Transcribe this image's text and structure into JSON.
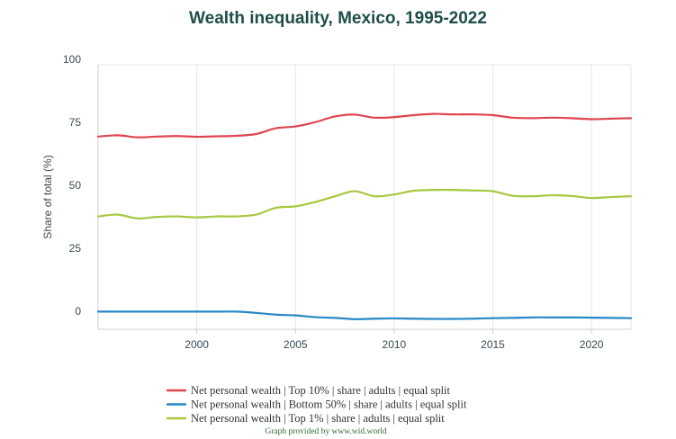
{
  "chart_data": {
    "type": "line",
    "title": "Wealth inequality, Mexico, 1995-2022",
    "ylabel": "Share of total (%)",
    "xlabel": "",
    "xlim": [
      1995,
      2022
    ],
    "ylim": [
      -5,
      100
    ],
    "x_ticks": [
      2000,
      2005,
      2010,
      2015,
      2020
    ],
    "y_ticks": [
      0,
      25,
      50,
      75,
      100
    ],
    "grid": "vertical",
    "legend_position": "bottom",
    "x": [
      1995,
      1996,
      1997,
      1998,
      1999,
      2000,
      2001,
      2002,
      2003,
      2004,
      2005,
      2006,
      2007,
      2008,
      2009,
      2010,
      2011,
      2012,
      2013,
      2014,
      2015,
      2016,
      2017,
      2018,
      2019,
      2020,
      2021,
      2022
    ],
    "series": [
      {
        "name": "Net personal wealth | Top 10% | share | adults | equal split",
        "color": "#e0454f",
        "values": [
          71.5,
          72.0,
          71.2,
          71.5,
          71.7,
          71.4,
          71.6,
          71.8,
          72.5,
          74.8,
          75.5,
          77.2,
          79.5,
          80.2,
          79.0,
          79.2,
          80.0,
          80.5,
          80.3,
          80.3,
          80.0,
          79.0,
          78.8,
          79.0,
          78.8,
          78.4,
          78.6,
          78.8
        ]
      },
      {
        "name": "Net personal wealth | Bottom 50% | share | adults | equal split",
        "color": "#2788c6",
        "values": [
          2.0,
          2.0,
          2.0,
          2.0,
          2.0,
          2.0,
          2.0,
          2.0,
          1.5,
          0.8,
          0.5,
          -0.2,
          -0.5,
          -1.0,
          -0.8,
          -0.7,
          -0.8,
          -0.9,
          -0.9,
          -0.8,
          -0.6,
          -0.5,
          -0.3,
          -0.3,
          -0.3,
          -0.4,
          -0.5,
          -0.6
        ]
      },
      {
        "name": "Net personal wealth | Top 1% | share | adults | equal split",
        "color": "#a8c840",
        "values": [
          39.8,
          40.5,
          39.0,
          39.6,
          39.8,
          39.4,
          39.8,
          39.8,
          40.5,
          43.2,
          43.8,
          45.5,
          47.8,
          49.8,
          47.8,
          48.5,
          50.0,
          50.3,
          50.3,
          50.1,
          49.8,
          48.0,
          47.8,
          48.2,
          47.9,
          47.1,
          47.5,
          47.8
        ]
      }
    ]
  },
  "credit": "Graph provided by www.wid.world"
}
